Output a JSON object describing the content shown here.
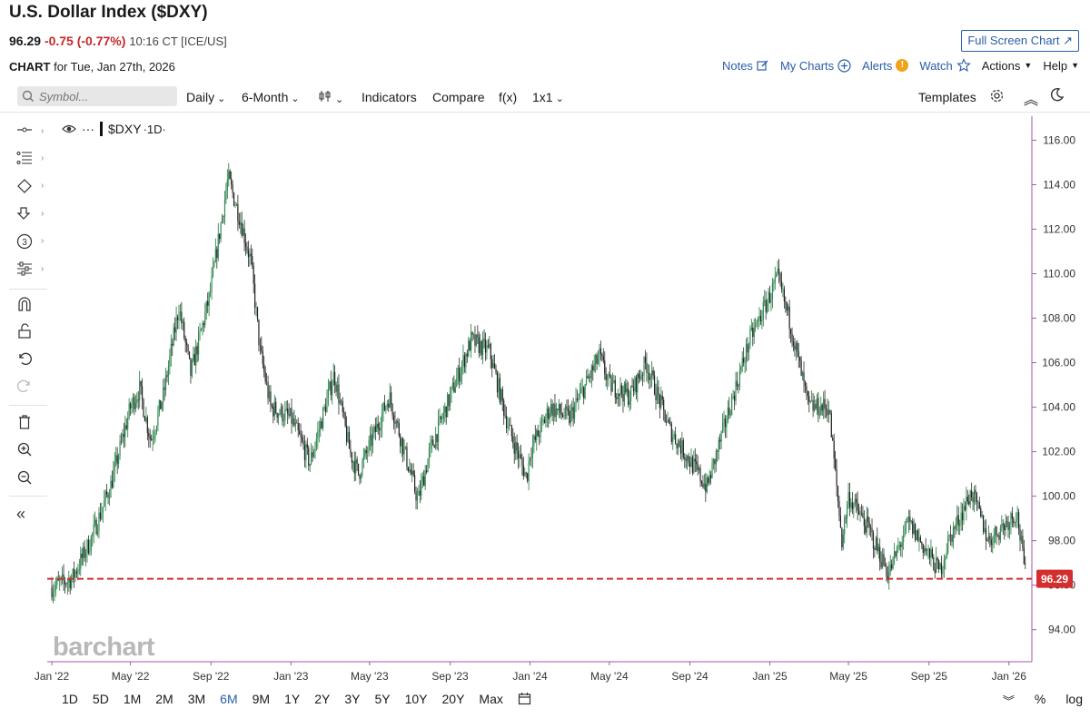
{
  "header": {
    "title": "U.S. Dollar Index ($DXY)",
    "last": "96.29",
    "change": "-0.75 (-0.77%)",
    "time": "10:16 CT [ICE/US]",
    "full_screen": "Full Screen Chart ↗",
    "chart_label": "CHART",
    "chart_date": "for Tue, Jan 27th, 2026"
  },
  "links": {
    "notes": "Notes",
    "my_charts": "My Charts",
    "alerts": "Alerts",
    "watch": "Watch",
    "actions": "Actions",
    "help": "Help"
  },
  "toolbar": {
    "symbol_placeholder": "Symbol...",
    "interval": "Daily",
    "period": "6-Month",
    "indicators": "Indicators",
    "compare": "Compare",
    "fx": "f(x)",
    "layout": "1x1",
    "templates": "Templates"
  },
  "legend": {
    "symbol": "$DXY",
    "interval": "·1D·"
  },
  "brand": "barchart",
  "ranges": [
    "1D",
    "5D",
    "1M",
    "2M",
    "3M",
    "6M",
    "9M",
    "1Y",
    "2Y",
    "3Y",
    "5Y",
    "10Y",
    "20Y",
    "Max"
  ],
  "selected_range": "6M",
  "bottom_right": {
    "percent": "%",
    "log": "log"
  },
  "chart_data": {
    "type": "candlestick",
    "x_ticks": [
      "Jan '22",
      "May '22",
      "Sep '22",
      "Jan '23",
      "May '23",
      "Sep '23",
      "Jan '24",
      "May '24",
      "Sep '24",
      "Jan '25",
      "May '25",
      "Sep '25",
      "Jan '26"
    ],
    "y_ticks": [
      "94.00",
      "96.00",
      "98.00",
      "100.00",
      "102.00",
      "104.00",
      "106.00",
      "108.00",
      "110.00",
      "112.00",
      "114.00",
      "116.00"
    ],
    "ylim": [
      93,
      117
    ],
    "price_line": {
      "value": 96.29,
      "label": "96.29",
      "color": "#d32f2f"
    },
    "series": [
      {
        "points": [
          [
            "2022-01",
            95.9
          ],
          [
            "2022-02",
            96.3
          ],
          [
            "2022-03",
            98.0
          ],
          [
            "2022-04",
            100.5
          ],
          [
            "2022-05",
            104.0
          ],
          [
            "2022-05-15",
            104.8
          ],
          [
            "2022-06",
            102.5
          ],
          [
            "2022-06-20",
            104.5
          ],
          [
            "2022-07-14",
            108.5
          ],
          [
            "2022-08",
            105.5
          ],
          [
            "2022-08-30",
            109.0
          ],
          [
            "2022-09-27",
            114.3
          ],
          [
            "2022-10-15",
            112.5
          ],
          [
            "2022-11",
            110.5
          ],
          [
            "2022-11-15",
            106.5
          ],
          [
            "2022-12",
            104.0
          ],
          [
            "2023-01",
            103.5
          ],
          [
            "2023-01-30",
            101.5
          ],
          [
            "2023-03-08",
            105.5
          ],
          [
            "2023-04",
            102.0
          ],
          [
            "2023-04-14",
            101.0
          ],
          [
            "2023-05-31",
            104.5
          ],
          [
            "2023-07-14",
            99.8
          ],
          [
            "2023-08",
            102.0
          ],
          [
            "2023-10-03",
            107.0
          ],
          [
            "2023-10-31",
            106.5
          ],
          [
            "2023-11-30",
            103.0
          ],
          [
            "2023-12-27",
            100.8
          ],
          [
            "2024-01",
            102.0
          ],
          [
            "2024-02",
            104.0
          ],
          [
            "2024-03",
            103.5
          ],
          [
            "2024-04-16",
            106.3
          ],
          [
            "2024-05",
            105.0
          ],
          [
            "2024-06",
            104.5
          ],
          [
            "2024-06-26",
            106.0
          ],
          [
            "2024-08",
            103.0
          ],
          [
            "2024-09-27",
            100.4
          ],
          [
            "2024-11",
            104.0
          ],
          [
            "2024-12",
            107.0
          ],
          [
            "2025-01-13",
            109.8
          ],
          [
            "2025-02",
            107.8
          ],
          [
            "2025-03",
            104.0
          ],
          [
            "2025-04-01",
            104.0
          ],
          [
            "2025-04-21",
            98.0
          ],
          [
            "2025-05",
            100.0
          ],
          [
            "2025-06",
            98.5
          ],
          [
            "2025-07-01",
            96.5
          ],
          [
            "2025-08",
            98.8
          ],
          [
            "2025-09-17",
            96.6
          ],
          [
            "2025-10",
            98.0
          ],
          [
            "2025-11-05",
            100.2
          ],
          [
            "2025-12",
            98.0
          ],
          [
            "2026-01-13",
            99.3
          ],
          [
            "2026-01-27",
            96.29
          ]
        ]
      }
    ]
  }
}
